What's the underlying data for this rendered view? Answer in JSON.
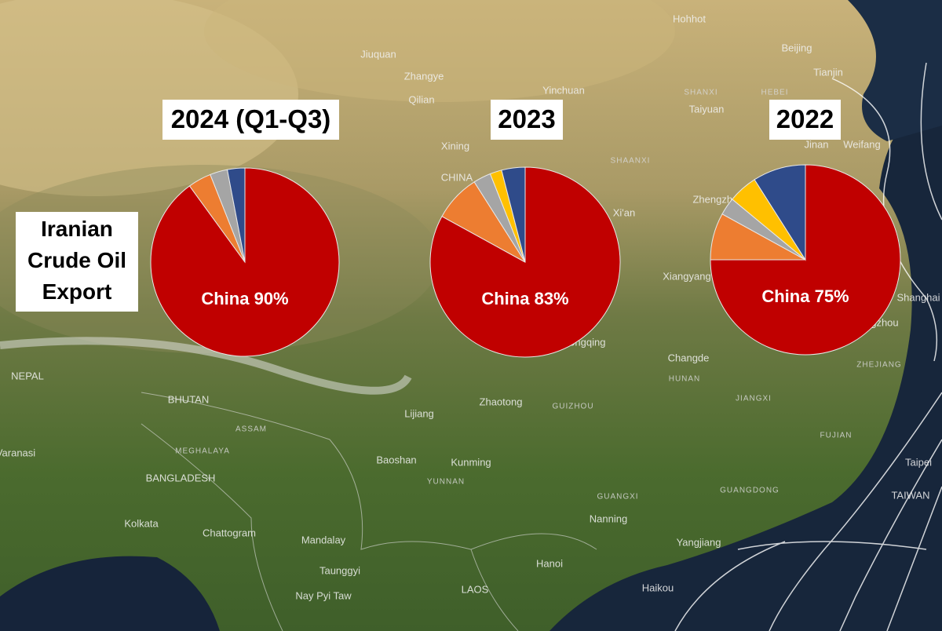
{
  "label": "Iranian Crude Oil Export",
  "map_labels": [
    "Hohhot",
    "Beijing",
    "Tianjin",
    "Jiuquan",
    "Zhangye",
    "Qilian",
    "Yinchuan",
    "SHANXI",
    "Taiyuan",
    "HEBEI",
    "Xining",
    "CHINA",
    "Jinan",
    "Weifang",
    "SHAANXI",
    "Xi'an",
    "Zhengzhou",
    "Xiangyang",
    "Changde",
    "HUNAN",
    "Chongqing",
    "NEPAL",
    "BHUTAN",
    "ASSAM",
    "MEGHALAYA",
    "BANGLADESH",
    "Lijiang",
    "Zhaotong",
    "GUIZHOU",
    "JIANGXI",
    "ZHEJIANG",
    "FUJIAN",
    "Baoshan",
    "Kunming",
    "YUNNAN",
    "GUANGXI",
    "GUANGDONG",
    "Nanning",
    "Taipei",
    "TAIWAN",
    "Kolkata",
    "Chattogram",
    "Mandalay",
    "Taunggyi",
    "Hanoi",
    "LAOS",
    "Nay Pyi Taw",
    "Yangjiang",
    "Haikou",
    "Varanasi",
    "Shanghai",
    "Hangzhou"
  ],
  "chart_data": [
    {
      "type": "pie",
      "title": "2024 (Q1-Q3)",
      "categories": [
        "China",
        null,
        null,
        null
      ],
      "values": [
        90,
        4,
        3,
        3
      ],
      "value_labels": [
        "China 90%",
        null,
        null,
        null
      ],
      "colors": [
        "#c00000",
        "#ed7d31",
        "#a5a5a5",
        "#2f4b8a"
      ]
    },
    {
      "type": "pie",
      "title": "2023",
      "categories": [
        "China",
        null,
        null,
        null,
        null
      ],
      "values": [
        83,
        8,
        3,
        2,
        4
      ],
      "value_labels": [
        "China 83%",
        null,
        null,
        null,
        null
      ],
      "colors": [
        "#c00000",
        "#ed7d31",
        "#a5a5a5",
        "#ffc000",
        "#2f4b8a"
      ]
    },
    {
      "type": "pie",
      "title": "2022",
      "categories": [
        "China",
        null,
        null,
        null,
        null
      ],
      "values": [
        75,
        8,
        3,
        5,
        9
      ],
      "value_labels": [
        "China 75%",
        null,
        null,
        null,
        null
      ],
      "colors": [
        "#c00000",
        "#ed7d31",
        "#a5a5a5",
        "#ffc000",
        "#2f4b8a"
      ]
    }
  ]
}
